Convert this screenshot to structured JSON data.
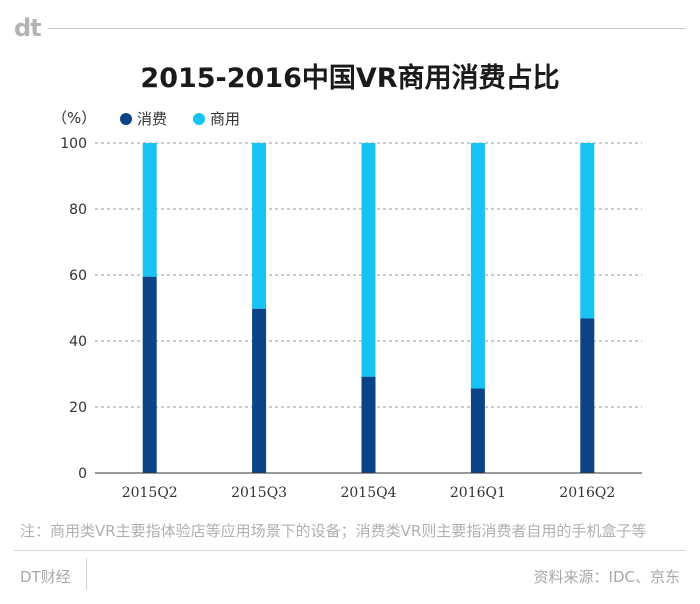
{
  "logo": "dt",
  "title": "2015-2016中国VR商用消费占比",
  "unit_label": "（%）",
  "legend": [
    {
      "label": "消费",
      "color": "#0b4486"
    },
    {
      "label": "商用",
      "color": "#16c3f2"
    }
  ],
  "chart_data": {
    "type": "bar",
    "stacked": true,
    "title": "2015-2016中国VR商用消费占比",
    "categories": [
      "2015Q2",
      "2015Q3",
      "2015Q4",
      "2016Q1",
      "2016Q2"
    ],
    "series": [
      {
        "name": "消费",
        "color": "#0b4486",
        "values": [
          59.5,
          49.8,
          29.2,
          25.6,
          46.9
        ]
      },
      {
        "name": "商用",
        "color": "#16c3f2",
        "values": [
          40.5,
          50.2,
          70.8,
          74.4,
          53.1
        ]
      }
    ],
    "ylim": [
      0,
      100
    ],
    "yticks": [
      0,
      20,
      40,
      60,
      80,
      100
    ],
    "ylabel": "（%）",
    "grid": true,
    "legend_position": "top-left"
  },
  "note": "注：商用类VR主要指体验店等应用场景下的设备；消费类VR则主要指消费者自用的手机盒子等",
  "brand": "DT财经",
  "source": "资料来源：IDC、京东"
}
